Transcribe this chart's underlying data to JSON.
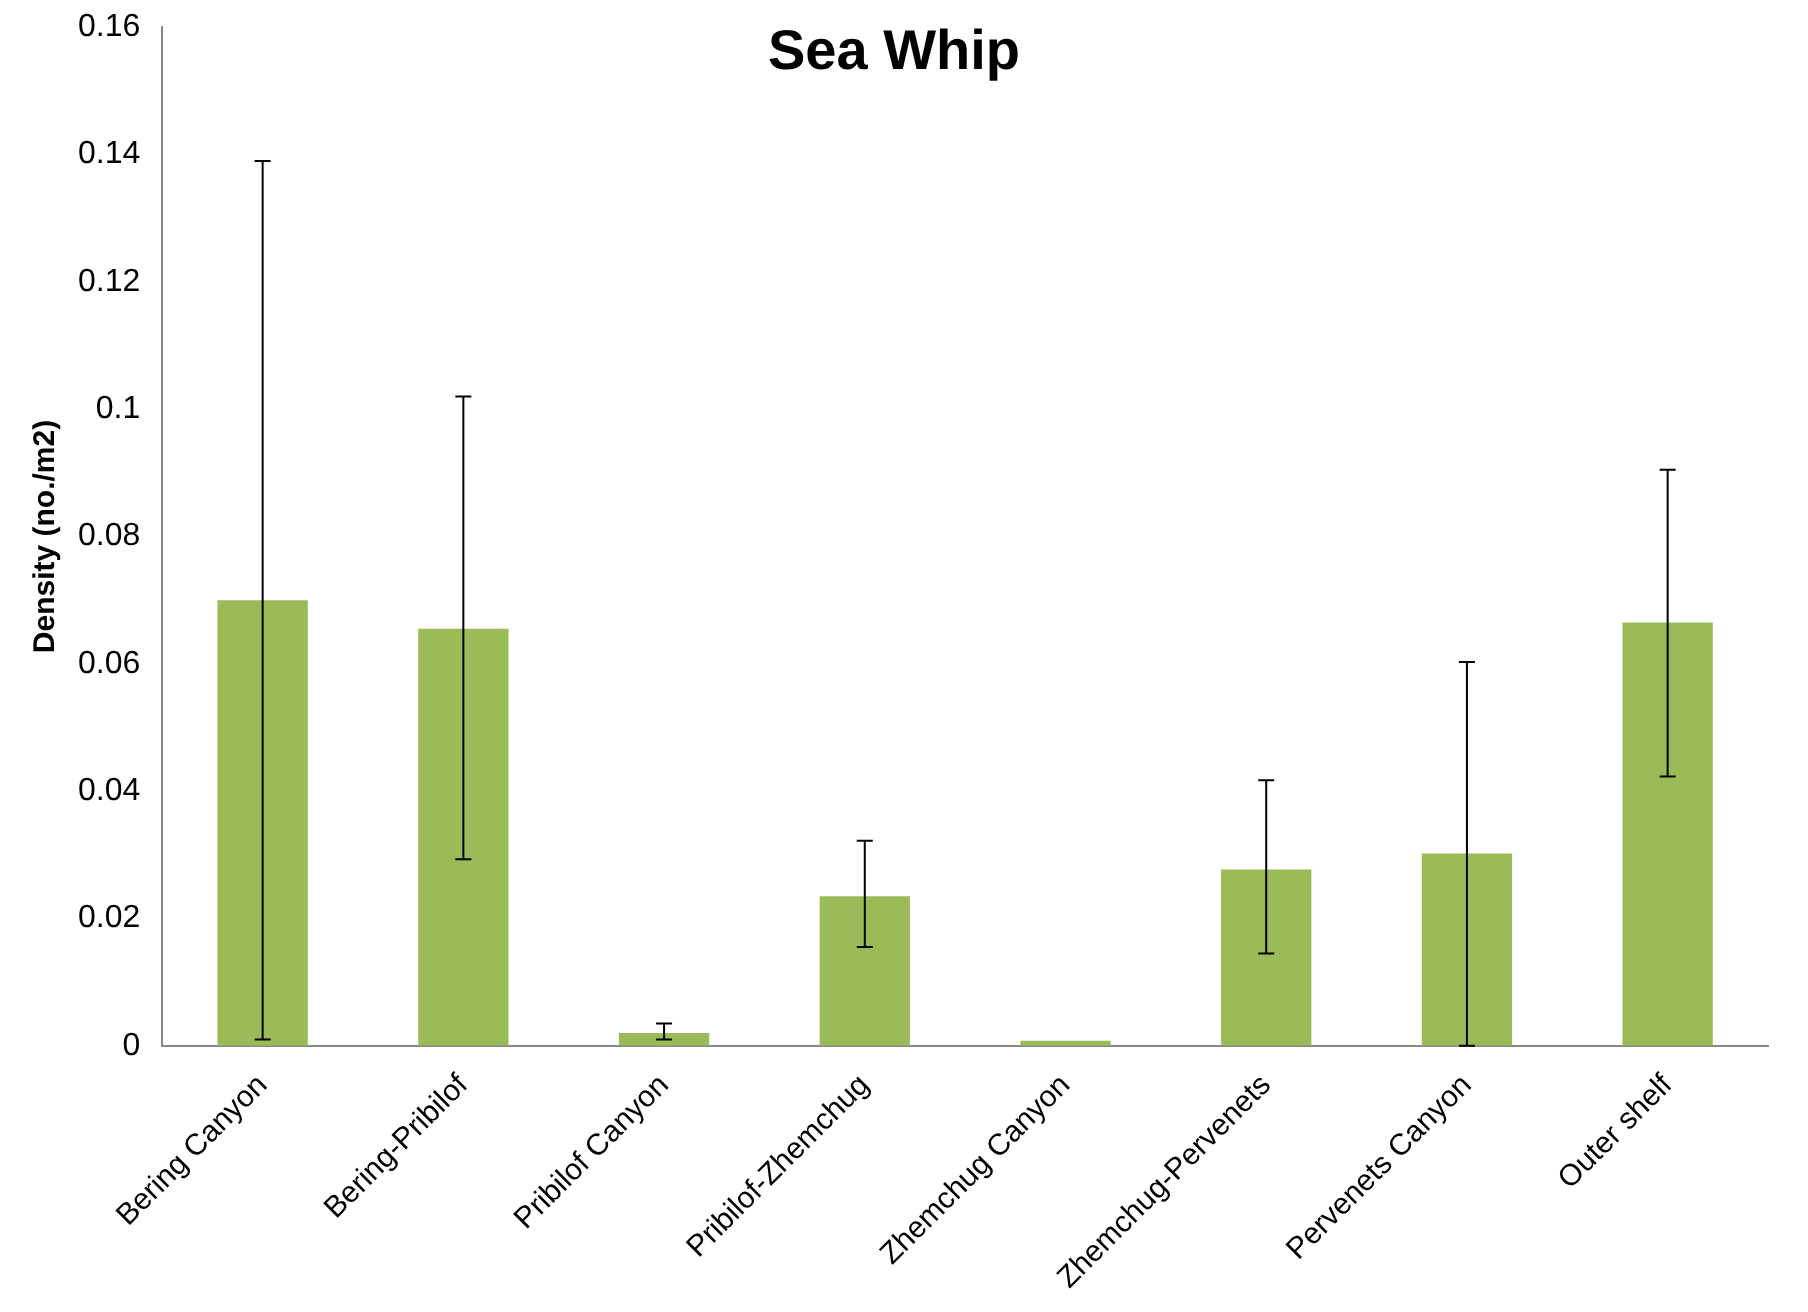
{
  "chart_data": {
    "type": "bar",
    "title": "Sea Whip",
    "ylabel": "Density (no./m2)",
    "categories": [
      "Bering Canyon",
      "Bering-Pribilof",
      "Pribilof Canyon",
      "Pribilof-Zhemchug",
      "Zhemchug Canyon",
      "Zhemchug-Pervenets",
      "Pervenets Canyon",
      "Outer shelf"
    ],
    "values": [
      0.07,
      0.0655,
      0.002,
      0.0235,
      0.0008,
      0.0277,
      0.0302,
      0.0665
    ],
    "errors": [
      [
        0.001,
        0.139
      ],
      [
        0.0293,
        0.102
      ],
      [
        0.001,
        0.0035
      ],
      [
        0.0155,
        0.0322
      ],
      null,
      [
        0.0145,
        0.0417
      ],
      [
        0.0,
        0.0603
      ],
      [
        0.0423,
        0.0905
      ]
    ],
    "color": "#9bbb59",
    "ylim": [
      0,
      0.16
    ],
    "yticks": [
      0,
      0.02,
      0.04,
      0.06,
      0.08,
      0.1,
      0.12,
      0.14,
      0.16
    ],
    "grid": false,
    "legend": false
  }
}
